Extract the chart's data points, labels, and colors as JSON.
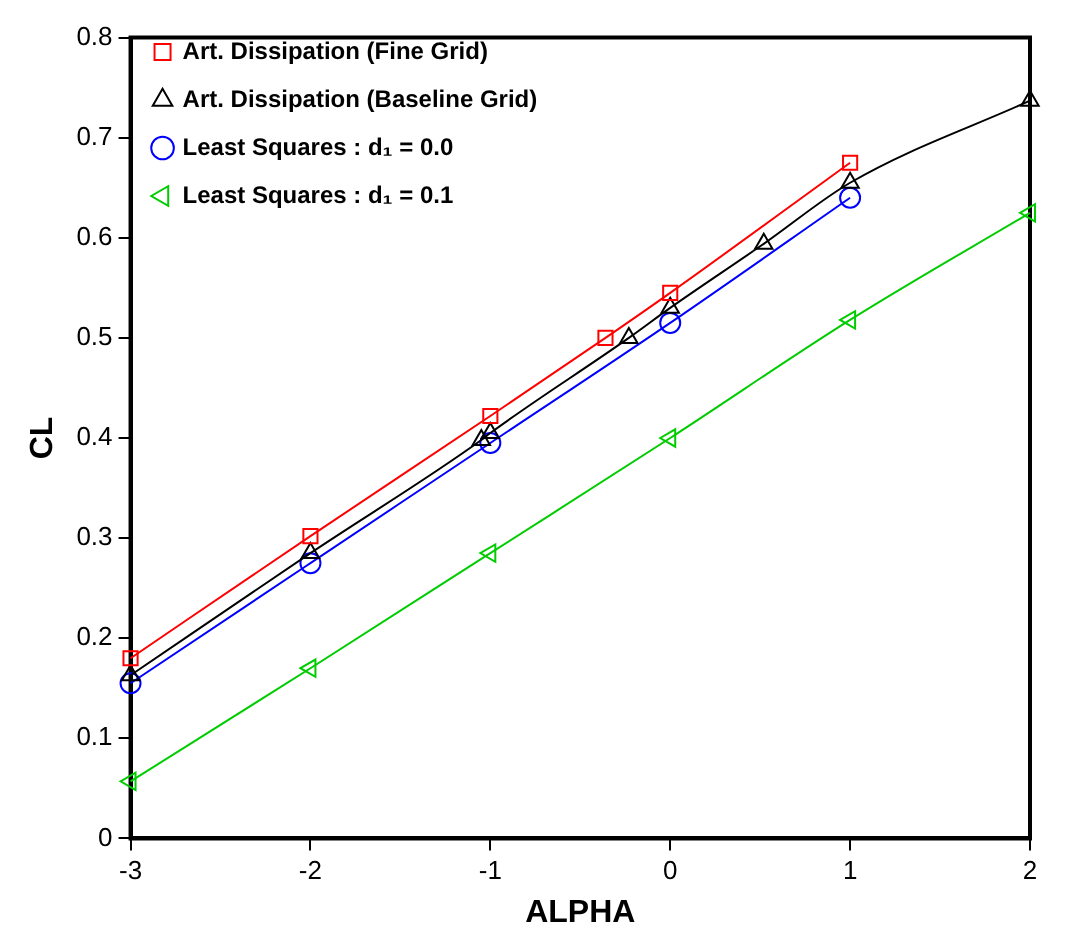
{
  "chart_data": {
    "type": "line",
    "xlabel": "ALPHA",
    "ylabel": "CL",
    "xlim": [
      -3,
      2
    ],
    "ylim": [
      0,
      0.8
    ],
    "xticks": [
      -3,
      -2,
      -1,
      0,
      1,
      2
    ],
    "yticks": [
      0,
      0.1,
      0.2,
      0.3,
      0.4,
      0.5,
      0.6,
      0.7,
      0.8
    ],
    "grid": false,
    "legend": "top left",
    "line_style": "solid",
    "series": [
      {
        "name": "Art. Dissipation (Fine Grid)",
        "color": "#ff0000",
        "marker": "square",
        "x": [
          -3,
          -2,
          -1,
          -0.36,
          0,
          1
        ],
        "values": [
          0.18,
          0.302,
          0.422,
          0.5,
          0.545,
          0.675
        ]
      },
      {
        "name": "Art. Dissipation (Baseline Grid)",
        "color": "#000000",
        "marker": "triangle",
        "x": [
          -3,
          -2,
          -1.05,
          -1,
          -0.23,
          0,
          0.52,
          1,
          2
        ],
        "values": [
          0.163,
          0.285,
          0.398,
          0.405,
          0.5,
          0.53,
          0.594,
          0.655,
          0.737
        ]
      },
      {
        "name": "Least Squares : d₁ = 0.0",
        "color": "#0000ff",
        "marker": "circle",
        "x": [
          -3,
          -2,
          -1,
          0,
          1
        ],
        "values": [
          0.155,
          0.275,
          0.395,
          0.515,
          0.64
        ]
      },
      {
        "name": "Least Squares : d₁ = 0.1",
        "color": "#00cc00",
        "marker": "triangle-left",
        "x": [
          -3,
          -2,
          -1,
          0,
          1,
          2
        ],
        "values": [
          0.057,
          0.17,
          0.285,
          0.4,
          0.518,
          0.625
        ]
      }
    ]
  }
}
